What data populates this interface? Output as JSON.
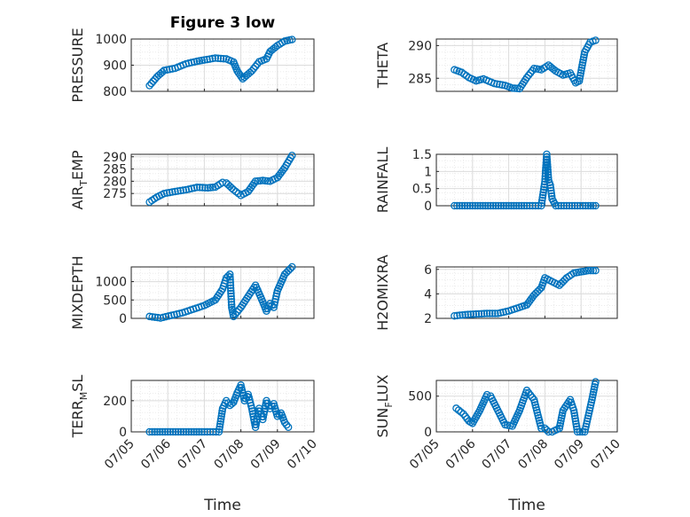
{
  "figure": {
    "title": "Figure 3 low",
    "xlabel": "Time"
  },
  "colors": {
    "marker": "#0072BD",
    "axis": "#262626"
  },
  "chart_data": [
    {
      "type": "scatter",
      "title": "Figure 3 low",
      "ylabel": "PRESSURE",
      "xlabel": "",
      "ylim": [
        800,
        1000
      ],
      "yticks": [
        {
          "v": 800,
          "t": "800"
        },
        {
          "v": 900,
          "t": "900"
        },
        {
          "v": 1000,
          "t": "1000"
        }
      ],
      "xlim": [
        0,
        5
      ],
      "xticks": [
        0,
        1,
        2,
        3,
        4,
        5
      ],
      "xticklabels": [],
      "series": [
        {
          "x": [
            0.5,
            0.7,
            0.9,
            1.2,
            1.5,
            1.8,
            2.0,
            2.3,
            2.6,
            2.8,
            2.9,
            3.05,
            3.3,
            3.5,
            3.7,
            3.8,
            4.0,
            4.2,
            4.4
          ],
          "y": [
            822,
            855,
            880,
            888,
            905,
            915,
            920,
            927,
            924,
            912,
            878,
            848,
            878,
            913,
            924,
            952,
            975,
            992,
            998
          ]
        }
      ]
    },
    {
      "type": "scatter",
      "title": "",
      "ylabel": "THETA",
      "xlabel": "",
      "ylim": [
        283,
        291
      ],
      "yticks": [
        {
          "v": 285,
          "t": "285"
        },
        {
          "v": 290,
          "t": "290"
        }
      ],
      "xlim": [
        0,
        5
      ],
      "xticks": [
        0,
        1,
        2,
        3,
        4,
        5
      ],
      "xticklabels": [],
      "series": [
        {
          "x": [
            0.5,
            0.7,
            0.9,
            1.1,
            1.3,
            1.6,
            1.9,
            2.1,
            2.3,
            2.5,
            2.7,
            2.9,
            3.1,
            3.3,
            3.5,
            3.7,
            3.85,
            3.95,
            4.1,
            4.25,
            4.4
          ],
          "y": [
            286.3,
            285.9,
            285.1,
            284.6,
            284.9,
            284.2,
            283.9,
            283.5,
            283.4,
            285.1,
            286.5,
            286.3,
            287.0,
            286.1,
            285.5,
            285.8,
            284.3,
            284.6,
            289.0,
            290.5,
            290.8
          ]
        }
      ]
    },
    {
      "type": "scatter",
      "title": "",
      "ylabel": "AIR_TEMP",
      "ylabel_main": "AIR",
      "ylabel_sub": "T",
      "ylabel_rest": "EMP",
      "xlabel": "",
      "ylim": [
        270,
        291
      ],
      "yticks": [
        {
          "v": 275,
          "t": "275"
        },
        {
          "v": 280,
          "t": "280"
        },
        {
          "v": 285,
          "t": "285"
        },
        {
          "v": 290,
          "t": "290"
        }
      ],
      "xlim": [
        0,
        5
      ],
      "xticks": [
        0,
        1,
        2,
        3,
        4,
        5
      ],
      "xticklabels": [],
      "series": [
        {
          "x": [
            0.5,
            0.7,
            0.9,
            1.2,
            1.5,
            1.8,
            2.1,
            2.3,
            2.5,
            2.6,
            2.8,
            3.0,
            3.2,
            3.4,
            3.6,
            3.8,
            4.0,
            4.2,
            4.4
          ],
          "y": [
            271.5,
            273.5,
            275.0,
            275.8,
            276.5,
            277.5,
            277.3,
            277.6,
            279.5,
            279.3,
            276.5,
            274.2,
            275.8,
            280.0,
            280.3,
            280.0,
            281.5,
            285.5,
            290.5
          ]
        }
      ]
    },
    {
      "type": "scatter",
      "title": "",
      "ylabel": "RAINFALL",
      "xlabel": "",
      "ylim": [
        0,
        1.5
      ],
      "yticks": [
        {
          "v": 0,
          "t": "0"
        },
        {
          "v": 0.5,
          "t": "0.5"
        },
        {
          "v": 1,
          "t": "1"
        },
        {
          "v": 1.5,
          "t": "1.5"
        }
      ],
      "xlim": [
        0,
        5
      ],
      "xticks": [
        0,
        1,
        2,
        3,
        4,
        5
      ],
      "xticklabels": [],
      "series": [
        {
          "x": [
            0.5,
            1.0,
            1.5,
            2.0,
            2.5,
            2.9,
            3.0,
            3.05,
            3.1,
            3.15,
            3.2,
            3.3,
            3.6,
            3.9,
            4.2,
            4.4
          ],
          "y": [
            0,
            0,
            0,
            0,
            0,
            0,
            0.7,
            1.5,
            0.75,
            0.6,
            0.2,
            0,
            0,
            0,
            0,
            0
          ]
        }
      ]
    },
    {
      "type": "scatter",
      "title": "",
      "ylabel": "MIXDEPTH",
      "xlabel": "",
      "ylim": [
        0,
        1400
      ],
      "yticks": [
        {
          "v": 0,
          "t": "0"
        },
        {
          "v": 500,
          "t": "500"
        },
        {
          "v": 1000,
          "t": "1000"
        }
      ],
      "xlim": [
        0,
        5
      ],
      "xticks": [
        0,
        1,
        2,
        3,
        4,
        5
      ],
      "xticklabels": [],
      "series": [
        {
          "x": [
            0.5,
            0.8,
            1.1,
            1.4,
            1.7,
            2.0,
            2.3,
            2.5,
            2.6,
            2.7,
            2.75,
            2.8,
            3.0,
            3.2,
            3.4,
            3.6,
            3.7,
            3.8,
            3.9,
            4.0,
            4.2,
            4.4
          ],
          "y": [
            50,
            10,
            80,
            150,
            250,
            350,
            500,
            800,
            1100,
            1200,
            300,
            50,
            300,
            600,
            900,
            450,
            200,
            400,
            300,
            750,
            1200,
            1400
          ]
        }
      ]
    },
    {
      "type": "scatter",
      "title": "",
      "ylabel": "H2OMIXRA",
      "xlabel": "",
      "ylim": [
        2,
        6.2
      ],
      "yticks": [
        {
          "v": 2,
          "t": "2"
        },
        {
          "v": 4,
          "t": "4"
        },
        {
          "v": 6,
          "t": "6"
        }
      ],
      "xlim": [
        0,
        5
      ],
      "xticks": [
        0,
        1,
        2,
        3,
        4,
        5
      ],
      "xticklabels": [],
      "series": [
        {
          "x": [
            0.5,
            0.8,
            1.1,
            1.4,
            1.7,
            2.0,
            2.3,
            2.5,
            2.7,
            2.9,
            3.0,
            3.2,
            3.4,
            3.6,
            3.8,
            4.0,
            4.2,
            4.4
          ],
          "y": [
            2.2,
            2.3,
            2.35,
            2.4,
            2.4,
            2.6,
            2.9,
            3.1,
            3.9,
            4.5,
            5.3,
            5.0,
            4.7,
            5.3,
            5.7,
            5.8,
            5.9,
            5.9
          ]
        }
      ]
    },
    {
      "type": "scatter",
      "title": "",
      "ylabel": "TERR_MSL",
      "ylabel_main": "TERR",
      "ylabel_sub": "M",
      "ylabel_rest": "SL",
      "xlabel": "Time",
      "ylim": [
        0,
        330
      ],
      "yticks": [
        {
          "v": 0,
          "t": "0"
        },
        {
          "v": 200,
          "t": "200"
        }
      ],
      "xlim": [
        0,
        5
      ],
      "xticks": [
        0,
        1,
        2,
        3,
        4,
        5
      ],
      "xticklabels": [
        "07/05",
        "07/06",
        "07/07",
        "07/08",
        "07/09",
        "07/10"
      ],
      "series": [
        {
          "x": [
            0.5,
            1.0,
            1.5,
            2.0,
            2.4,
            2.5,
            2.6,
            2.7,
            2.8,
            2.9,
            3.0,
            3.1,
            3.2,
            3.3,
            3.4,
            3.5,
            3.6,
            3.7,
            3.8,
            3.9,
            4.0,
            4.1,
            4.2,
            4.3
          ],
          "y": [
            0,
            0,
            0,
            0,
            0,
            150,
            200,
            170,
            190,
            250,
            300,
            200,
            240,
            150,
            30,
            150,
            80,
            200,
            150,
            180,
            100,
            120,
            60,
            30
          ]
        }
      ]
    },
    {
      "type": "scatter",
      "title": "",
      "ylabel": "SUN_FLUX",
      "ylabel_main": "SUN",
      "ylabel_sub": "F",
      "ylabel_rest": "LUX",
      "xlabel": "Time",
      "ylim": [
        0,
        720
      ],
      "yticks": [
        {
          "v": 0,
          "t": "0"
        },
        {
          "v": 500,
          "t": "500"
        }
      ],
      "xlim": [
        0,
        5
      ],
      "xticks": [
        0,
        1,
        2,
        3,
        4,
        5
      ],
      "xticklabels": [
        "07/05",
        "07/06",
        "07/07",
        "07/08",
        "07/09",
        "07/10"
      ],
      "series": [
        {
          "x": [
            0.55,
            0.75,
            0.9,
            1.0,
            1.2,
            1.4,
            1.5,
            1.7,
            1.9,
            2.1,
            2.3,
            2.5,
            2.7,
            2.9,
            3.0,
            3.1,
            3.2,
            3.4,
            3.5,
            3.7,
            3.8,
            3.9,
            4.1,
            4.3,
            4.4
          ],
          "y": [
            330,
            250,
            150,
            120,
            300,
            520,
            500,
            300,
            100,
            80,
            300,
            580,
            450,
            50,
            50,
            0,
            0,
            50,
            300,
            450,
            300,
            0,
            0,
            450,
            700
          ]
        }
      ]
    }
  ]
}
